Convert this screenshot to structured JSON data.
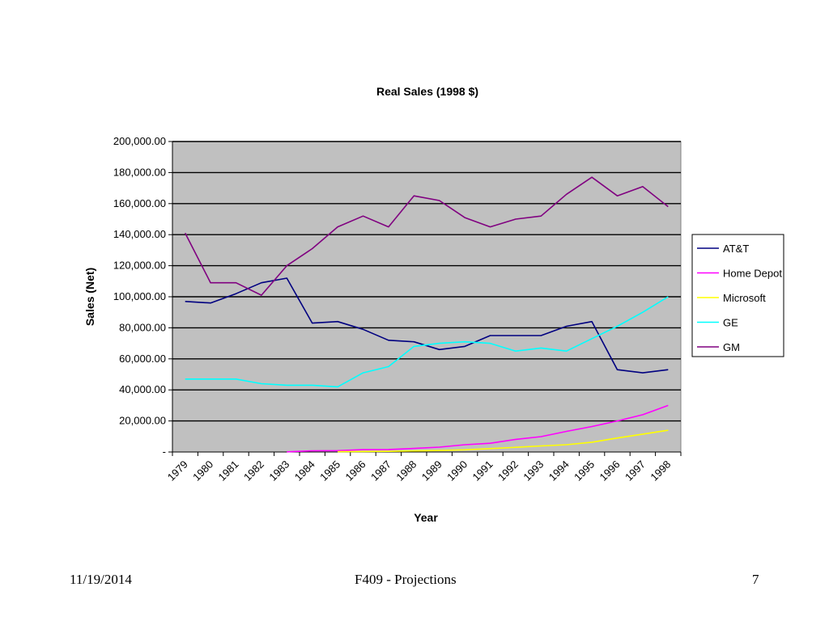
{
  "chart_data": {
    "type": "line",
    "title": "Real Sales (1998 $)",
    "xlabel": "Year",
    "ylabel": "Sales (Net)",
    "categories": [
      "1979",
      "1980",
      "1981",
      "1982",
      "1983",
      "1984",
      "1985",
      "1986",
      "1987",
      "1988",
      "1989",
      "1990",
      "1991",
      "1992",
      "1993",
      "1994",
      "1995",
      "1996",
      "1997",
      "1998"
    ],
    "ylim": [
      0,
      200000
    ],
    "yticks": [
      {
        "value": 200000,
        "label": "200,000.00"
      },
      {
        "value": 180000,
        "label": "180,000.00"
      },
      {
        "value": 160000,
        "label": "160,000.00"
      },
      {
        "value": 140000,
        "label": "140,000.00"
      },
      {
        "value": 120000,
        "label": "120,000.00"
      },
      {
        "value": 100000,
        "label": "100,000.00"
      },
      {
        "value": 80000,
        "label": "80,000.00"
      },
      {
        "value": 60000,
        "label": "60,000.00"
      },
      {
        "value": 40000,
        "label": "40,000.00"
      },
      {
        "value": 20000,
        "label": "20,000.00"
      },
      {
        "value": 0,
        "label": "-"
      }
    ],
    "grid": true,
    "legend_position": "right",
    "plot_background": "#c0c0c0",
    "series": [
      {
        "name": "AT&T",
        "color": "#000080",
        "values": [
          97000,
          96000,
          102000,
          109000,
          112000,
          83000,
          84000,
          79000,
          72000,
          71000,
          66000,
          68000,
          75000,
          75000,
          75000,
          81000,
          84000,
          53000,
          51000,
          53000
        ]
      },
      {
        "name": "Home Depot",
        "color": "#ff00ff",
        "values": [
          null,
          null,
          null,
          null,
          100,
          800,
          900,
          1500,
          1600,
          2300,
          3100,
          4700,
          5600,
          8100,
          9900,
          13300,
          16400,
          20000,
          24000,
          30000
        ]
      },
      {
        "name": "Microsoft",
        "color": "#ffff00",
        "values": [
          null,
          null,
          null,
          null,
          null,
          null,
          200,
          300,
          400,
          700,
          1000,
          1400,
          2200,
          3000,
          3900,
          4700,
          6300,
          9000,
          11500,
          14000
        ]
      },
      {
        "name": "GE",
        "color": "#00ffff",
        "values": [
          47000,
          47000,
          47000,
          44000,
          43000,
          43000,
          42000,
          51000,
          55000,
          68000,
          70000,
          71000,
          70000,
          65000,
          67000,
          65000,
          73000,
          81000,
          90000,
          100000
        ]
      },
      {
        "name": "GM",
        "color": "#800080",
        "values": [
          141000,
          109000,
          109000,
          101000,
          120000,
          131000,
          145000,
          152000,
          145000,
          165000,
          162000,
          151000,
          145000,
          150000,
          152000,
          166000,
          177000,
          165000,
          171000,
          158000
        ]
      }
    ]
  },
  "footer": {
    "date": "11/19/2014",
    "course": "F409 - Projections",
    "page": "7"
  }
}
